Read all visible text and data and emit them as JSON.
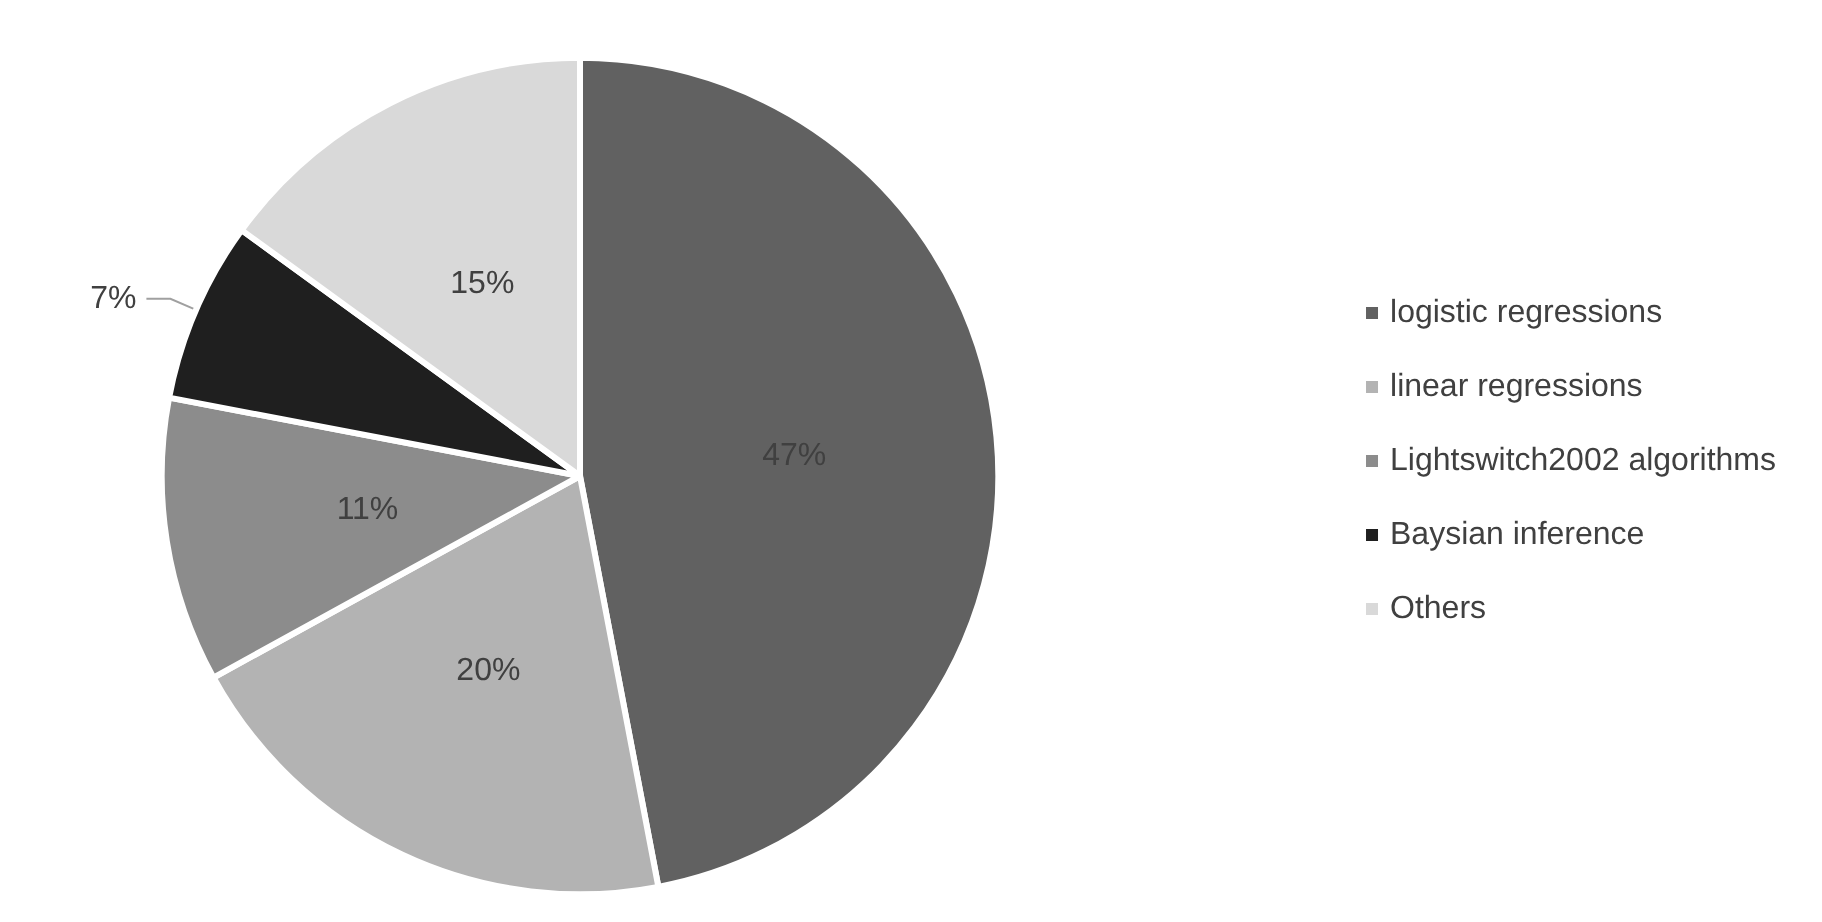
{
  "chart_data": {
    "type": "pie",
    "categories": [
      "logistic regressions",
      "linear regressions",
      "Lightswitch2002 algorithms",
      "Baysian inference",
      "Others"
    ],
    "values": [
      47,
      20,
      11,
      7,
      15
    ],
    "colors": [
      "#616161",
      "#b3b3b3",
      "#8c8c8c",
      "#1f1f1f",
      "#d9d9d9"
    ],
    "value_labels": [
      "47%",
      "20%",
      "11%",
      "7%",
      "15%"
    ],
    "legend": "right"
  }
}
